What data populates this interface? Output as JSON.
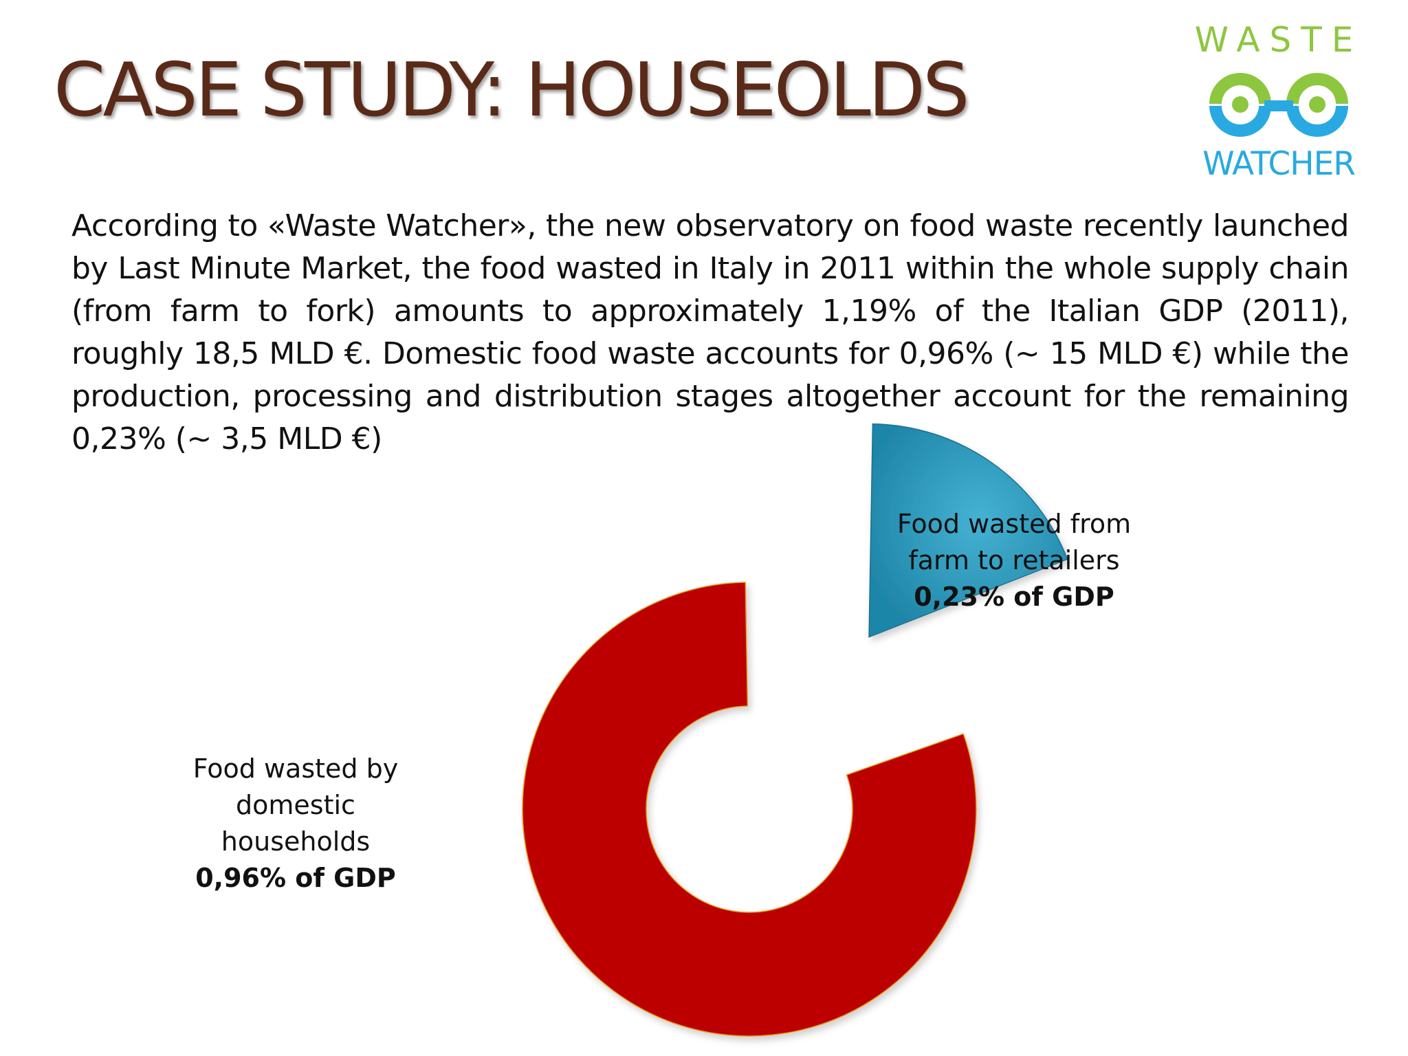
{
  "slide": {
    "title": "CASE STUDY: HOUSEOLDS",
    "paragraph": "According to «Waste Watcher», the new observatory on food waste recently launched by Last Minute Market, the food wasted in Italy in 2011 within the whole supply chain (from farm to fork) amounts to approximately 1,19% of the Italian GDP (2011), roughly 18,5 MLD €. Domestic food waste accounts for 0,96% (~ 15 MLD €) while the production, processing and distribution stages altogether account for the remaining 0,23% (~ 3,5 MLD €)"
  },
  "logo": {
    "top_text": "WASTE",
    "bottom_text": "WATCHER",
    "green": "#8dc63f",
    "blue": "#29a9e1"
  },
  "chart_data": {
    "type": "pie",
    "variant": "exploded-donut",
    "title": "",
    "unit": "% of GDP",
    "categories": [
      "Food wasted from farm to retailers",
      "Food wasted by domestic households"
    ],
    "values": [
      0.23,
      0.96
    ],
    "total": 1.19,
    "series": [
      {
        "name": "Food wasted from farm to retailers",
        "label_lines": [
          "Food wasted from",
          "farm to retailers"
        ],
        "value": 0.23,
        "value_label": "0,23% of GDP",
        "color": "#2f9cbd"
      },
      {
        "name": "Food wasted by domestic households",
        "label_lines": [
          "Food wasted by",
          "domestic",
          "households"
        ],
        "value": 0.96,
        "value_label": "0,96% of GDP",
        "color": "#bc0000"
      }
    ]
  }
}
